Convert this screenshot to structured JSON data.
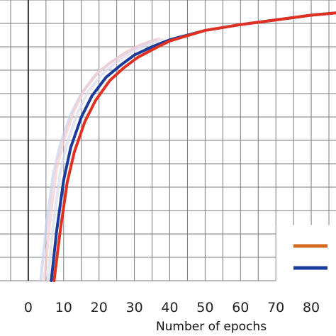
{
  "chart_data": {
    "type": "line",
    "title": "",
    "xlabel": "Number of epochs",
    "ylabel": "",
    "xlim": [
      -8,
      87
    ],
    "ylim": [
      0,
      12
    ],
    "grid": true,
    "x_ticks": [
      0,
      10,
      20,
      30,
      40,
      50,
      60,
      70,
      80
    ],
    "legend": {
      "placement": "bottom-right",
      "entries": [
        {
          "color": "#d2691e"
        },
        {
          "color": "#1a3a9c"
        }
      ]
    },
    "series": [
      {
        "color": "#1a3a9c",
        "x": [
          6.5,
          8,
          10,
          12,
          15,
          18,
          22,
          26,
          30,
          35,
          40,
          50,
          60,
          70,
          80,
          87
        ],
        "y": [
          0,
          2.1,
          4.3,
          5.7,
          7.0,
          7.9,
          8.7,
          9.2,
          9.65,
          10.0,
          10.3,
          10.7,
          10.95,
          11.15,
          11.35,
          11.45
        ]
      },
      {
        "color": "#e03020",
        "x": [
          7.3,
          9,
          11,
          13,
          16,
          19,
          23,
          27,
          31,
          36,
          40,
          50,
          60,
          70,
          80,
          87
        ],
        "y": [
          0,
          2.1,
          4.2,
          5.5,
          6.8,
          7.7,
          8.55,
          9.1,
          9.55,
          9.95,
          10.25,
          10.7,
          10.95,
          11.15,
          11.35,
          11.45
        ]
      }
    ],
    "faint_series": [
      {
        "color": "#c8d0ee",
        "x": [
          3.5,
          5,
          7,
          9,
          12,
          15,
          19,
          23,
          27,
          31,
          36
        ],
        "y": [
          0,
          2.2,
          4.5,
          5.8,
          7.1,
          8.0,
          8.8,
          9.3,
          9.7,
          10.0,
          10.3
        ]
      },
      {
        "color": "#f6cccc",
        "x": [
          4.5,
          6,
          8,
          10,
          13,
          16,
          20,
          24,
          28,
          32,
          37
        ],
        "y": [
          0,
          2.4,
          4.8,
          6.0,
          7.3,
          8.2,
          8.95,
          9.4,
          9.8,
          10.1,
          10.35
        ]
      },
      {
        "color": "#dcdcec",
        "x": [
          5.5,
          7,
          9,
          11,
          14,
          17,
          21,
          25,
          29,
          33,
          38
        ],
        "y": [
          0,
          2.3,
          4.6,
          5.9,
          7.2,
          8.1,
          8.85,
          9.35,
          9.75,
          10.05,
          10.3
        ]
      }
    ]
  }
}
